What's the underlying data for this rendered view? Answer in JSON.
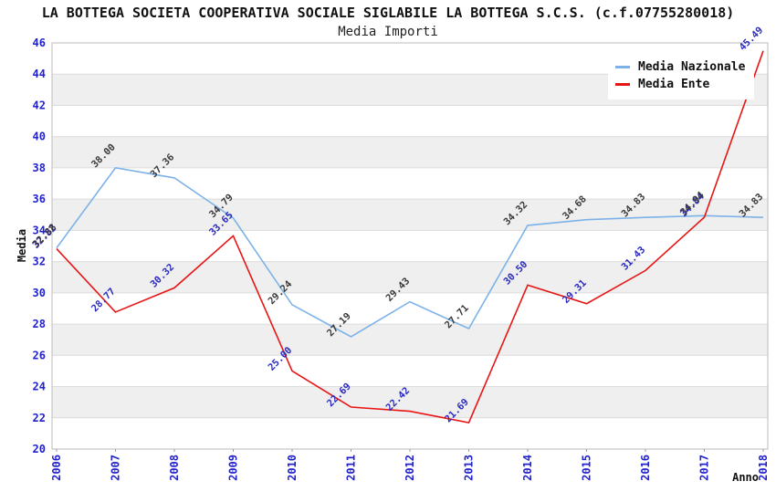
{
  "header": {
    "title": "LA BOTTEGA SOCIETA COOPERATIVA SOCIALE SIGLABILE LA BOTTEGA S.C.S. (c.f.07755280018)",
    "subtitle": "Media Importi"
  },
  "chart_data": {
    "type": "line",
    "title": "LA BOTTEGA SOCIETA COOPERATIVA SOCIALE SIGLABILE LA BOTTEGA S.C.S. (c.f.07755280018)",
    "subtitle": "Media Importi",
    "xlabel": "Anno",
    "ylabel": "Media",
    "categories": [
      "2006",
      "2007",
      "2008",
      "2009",
      "2010",
      "2011",
      "2012",
      "2013",
      "2014",
      "2015",
      "2016",
      "2017",
      "2018"
    ],
    "series": [
      {
        "name": "Media Nazionale",
        "color": "#7CB2E8",
        "label_color": "#3A3A3A",
        "values": [
          32.88,
          38.0,
          37.36,
          34.79,
          29.24,
          27.19,
          29.43,
          27.71,
          34.32,
          34.68,
          34.83,
          34.94,
          34.83
        ]
      },
      {
        "name": "Media Ente",
        "color": "#E81515",
        "label_color": "#2B2BC0",
        "values": [
          32.82,
          28.77,
          30.32,
          33.65,
          25.0,
          22.69,
          22.42,
          21.69,
          30.5,
          29.31,
          31.43,
          34.84,
          45.49
        ]
      }
    ],
    "ylim": [
      20,
      46
    ],
    "ytick_step": 2,
    "grid": "horizontal-gridlines-with-alternating-bands",
    "legend_position": "top-right",
    "colors": {
      "tick_label": "#2222CC",
      "band_gray": "#EFEFEF",
      "gridline": "#DCDCDC",
      "plot_border": "#BBBBBB",
      "tick_mark": "#999999"
    }
  }
}
